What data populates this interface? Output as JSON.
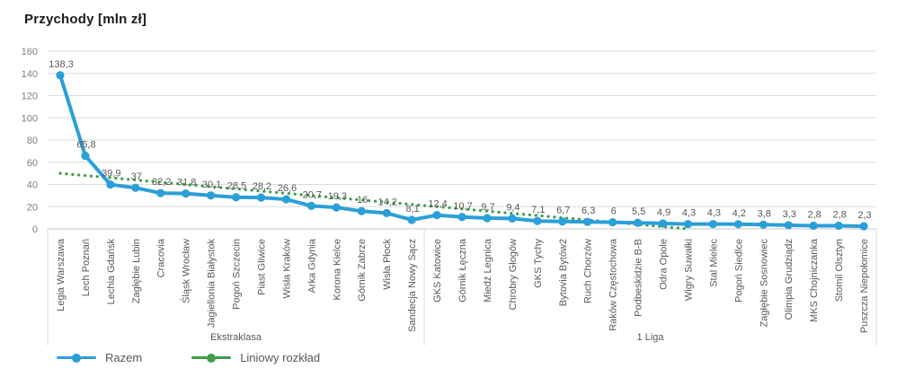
{
  "title": "Przychody [mln zł]",
  "colors": {
    "series_blue": "#2B9FD8",
    "trend_green": "#3F9E48",
    "gridline": "#DCDCDC",
    "axis_line": "#C8C8C8",
    "tick_label": "#7F7F7F",
    "data_label": "#595959",
    "title_text": "#1A1A1A"
  },
  "legend": {
    "items": [
      {
        "label": "Razem",
        "color": "#2B9FD8",
        "marker": "line-dot"
      },
      {
        "label": "Liniowy rozkład",
        "color": "#3F9E48",
        "marker": "line-dot"
      }
    ]
  },
  "chart_data": {
    "type": "line",
    "title": "Przychody [mln zł]",
    "xlabel": "",
    "ylabel": "Przychody [mln zł]",
    "ylim": [
      0,
      160
    ],
    "ytick_step": 20,
    "grid": true,
    "legend_position": "bottom-left",
    "categories": [
      "Legia Warszawa",
      "Lech Poznań",
      "Lechia Gdańsk",
      "Zagłębie Lubin",
      "Cracovia",
      "Śląsk Wrocław",
      "Jagiellonia Białystok",
      "Pogoń Szczecin",
      "Piast Gliwice",
      "Wisła Kraków",
      "Arka Gdynia",
      "Korona Kielce",
      "Górnik Zabrze",
      "Wisła Płock",
      "Sandecja Nowy Sącz",
      "GKS Katowice",
      "Górnik Łęczna",
      "Miedź Legnica",
      "Chrobry Głogów",
      "GKS Tychy",
      "Bytovia Bytów2",
      "Ruch Chorzów",
      "Raków Częstochowa",
      "Podbeskidzie B-B",
      "Odra Opole",
      "Wigry Suwałki",
      "Stal Mielec",
      "Pogoń Siedlce",
      "Zagłębie Sosnowiec",
      "Olimpia Grudziądz",
      "MKS Chojniczanka",
      "Stomil Olsztyn",
      "Puszcza Niepołomice"
    ],
    "groups": [
      {
        "label": "Ekstraklasa",
        "span": 15
      },
      {
        "label": "1 Liga",
        "span": 18
      }
    ],
    "series": [
      {
        "name": "Razem",
        "color": "#2B9FD8",
        "style": "solid-with-markers",
        "values": [
          138.3,
          65.8,
          39.9,
          37,
          32.2,
          31.8,
          30.1,
          28.5,
          28.2,
          26.6,
          20.7,
          19.3,
          16,
          14.2,
          8.1,
          12.4,
          10.7,
          9.7,
          9.4,
          7.1,
          6.7,
          6.3,
          6,
          5.5,
          4.9,
          4.3,
          4.3,
          4.2,
          3.8,
          3.3,
          2.8,
          2.8,
          2.3
        ]
      },
      {
        "name": "Liniowy rozkład",
        "color": "#3F9E48",
        "style": "dotted",
        "trend": {
          "start_value": 50,
          "end_value": 0,
          "start_index": 0,
          "end_index": 25
        }
      }
    ]
  }
}
